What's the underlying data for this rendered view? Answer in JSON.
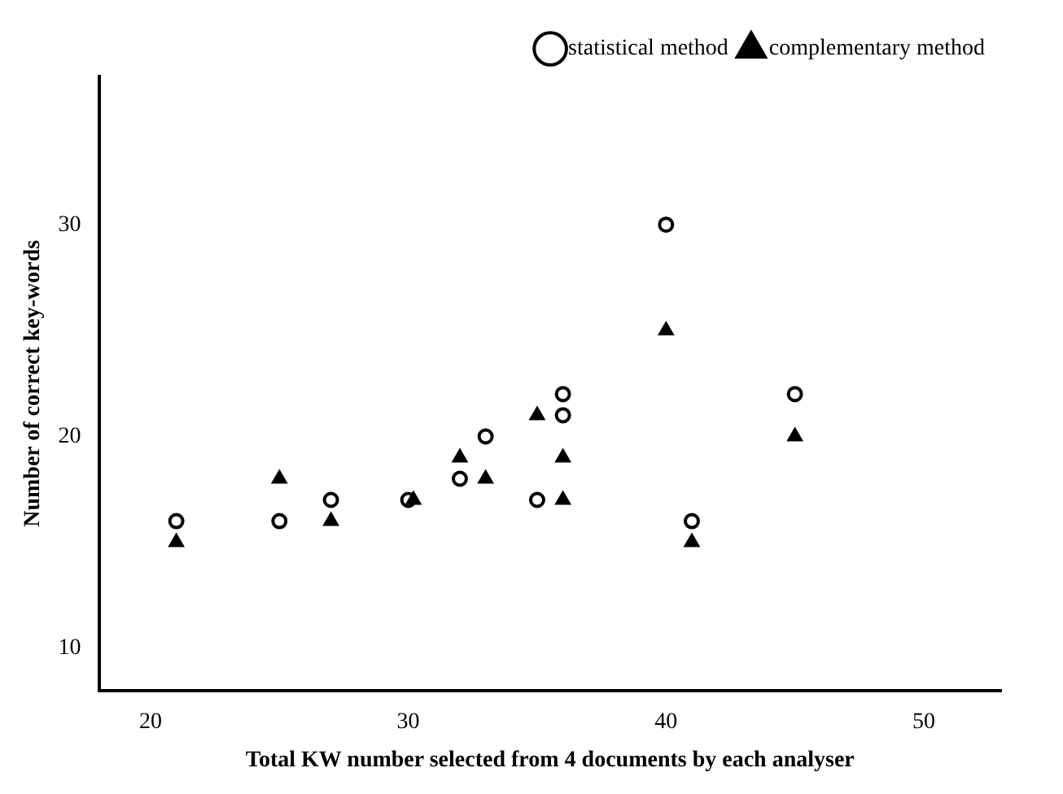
{
  "chart_data": {
    "type": "scatter",
    "xlabel": "Total KW number selected from 4 documents by each analyser",
    "ylabel": "Number of correct key-words",
    "xlim": [
      18,
      53
    ],
    "ylim": [
      8,
      37
    ],
    "xticks": [
      20,
      30,
      40,
      50
    ],
    "yticks": [
      10,
      20,
      30
    ],
    "grid": false,
    "legend": "top right",
    "series": [
      {
        "name": "statistical method",
        "color": "#000000",
        "marker": "circle",
        "x": [
          21,
          25,
          27,
          30,
          32,
          33,
          35,
          36,
          36,
          40,
          41,
          45
        ],
        "values": [
          16,
          16,
          17,
          17,
          18,
          20,
          17,
          21,
          22,
          30,
          16,
          22
        ]
      },
      {
        "name": "complementary method",
        "color": "#000000",
        "marker": "triangle",
        "x": [
          21,
          25,
          27,
          30.2,
          32,
          33,
          35,
          36,
          36,
          40,
          41,
          45
        ],
        "values": [
          15,
          18,
          16,
          17,
          19,
          18,
          21,
          19,
          17,
          25,
          15,
          20
        ]
      }
    ]
  }
}
